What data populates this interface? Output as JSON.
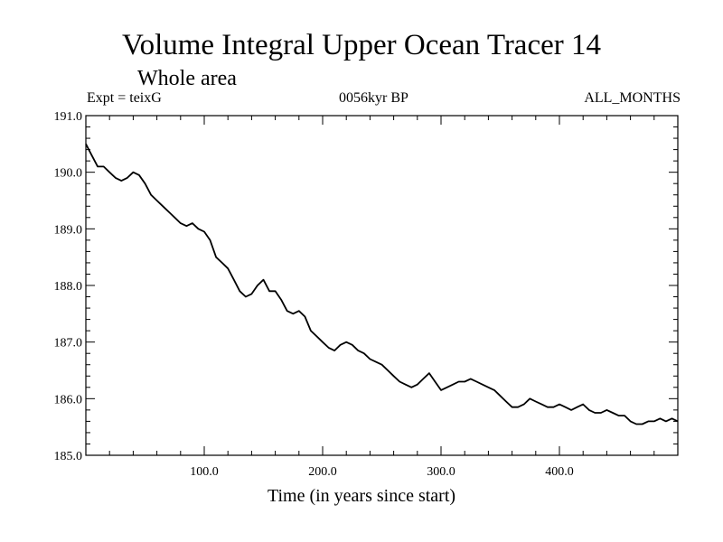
{
  "chart_data": {
    "type": "line",
    "title": "Volume Integral Upper Ocean Tracer 14",
    "subtitle": "Whole area",
    "experiment_label": "Expt = teixG",
    "period_label": "0056kyr BP",
    "months_label": "ALL_MONTHS",
    "xlabel": "Time (in years since start)",
    "ylabel": "",
    "xlim": [
      0,
      500
    ],
    "ylim": [
      185.0,
      191.0
    ],
    "xticks": [
      {
        "value": 100,
        "label": "100.0"
      },
      {
        "value": 200,
        "label": "200.0"
      },
      {
        "value": 300,
        "label": "300.0"
      },
      {
        "value": 400,
        "label": "400.0"
      }
    ],
    "yticks": [
      {
        "value": 185.0,
        "label": "185.0"
      },
      {
        "value": 186.0,
        "label": "186.0"
      },
      {
        "value": 187.0,
        "label": "187.0"
      },
      {
        "value": 188.0,
        "label": "188.0"
      },
      {
        "value": 189.0,
        "label": "189.0"
      },
      {
        "value": 190.0,
        "label": "190.0"
      },
      {
        "value": 191.0,
        "label": "191.0"
      }
    ],
    "series": [
      {
        "name": "Tracer 14",
        "color": "#000000",
        "x": [
          0,
          5,
          10,
          15,
          20,
          25,
          30,
          35,
          40,
          45,
          50,
          55,
          60,
          65,
          70,
          75,
          80,
          85,
          90,
          95,
          100,
          105,
          110,
          115,
          120,
          125,
          130,
          135,
          140,
          145,
          150,
          155,
          160,
          165,
          170,
          175,
          180,
          185,
          190,
          195,
          200,
          205,
          210,
          215,
          220,
          225,
          230,
          235,
          240,
          245,
          250,
          255,
          260,
          265,
          270,
          275,
          280,
          285,
          290,
          295,
          300,
          305,
          310,
          315,
          320,
          325,
          330,
          335,
          340,
          345,
          350,
          355,
          360,
          365,
          370,
          375,
          380,
          385,
          390,
          395,
          400,
          405,
          410,
          415,
          420,
          425,
          430,
          435,
          440,
          445,
          450,
          455,
          460,
          465,
          470,
          475,
          480,
          485,
          490,
          495,
          500
        ],
        "y": [
          190.5,
          190.3,
          190.1,
          190.1,
          190.0,
          189.9,
          189.85,
          189.9,
          190.0,
          189.95,
          189.8,
          189.6,
          189.5,
          189.4,
          189.3,
          189.2,
          189.1,
          189.05,
          189.1,
          189.0,
          188.95,
          188.8,
          188.5,
          188.4,
          188.3,
          188.1,
          187.9,
          187.8,
          187.85,
          188.0,
          188.1,
          187.9,
          187.9,
          187.75,
          187.55,
          187.5,
          187.55,
          187.45,
          187.2,
          187.1,
          187.0,
          186.9,
          186.85,
          186.95,
          187.0,
          186.95,
          186.85,
          186.8,
          186.7,
          186.65,
          186.6,
          186.5,
          186.4,
          186.3,
          186.25,
          186.2,
          186.25,
          186.35,
          186.45,
          186.3,
          186.15,
          186.2,
          186.25,
          186.3,
          186.3,
          186.35,
          186.3,
          186.25,
          186.2,
          186.15,
          186.05,
          185.95,
          185.85,
          185.85,
          185.9,
          186.0,
          185.95,
          185.9,
          185.85,
          185.85,
          185.9,
          185.85,
          185.8,
          185.85,
          185.9,
          185.8,
          185.75,
          185.75,
          185.8,
          185.75,
          185.7,
          185.7,
          185.6,
          185.55,
          185.55,
          185.6,
          185.6,
          185.65,
          185.6,
          185.65,
          185.6
        ]
      }
    ]
  }
}
